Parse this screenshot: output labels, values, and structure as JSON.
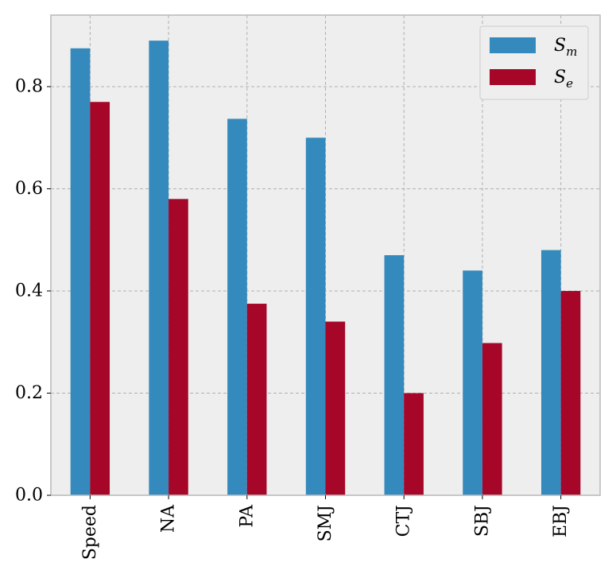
{
  "chart_data": {
    "type": "bar",
    "title": "",
    "xlabel": "",
    "ylabel": "",
    "categories": [
      "Speed",
      "NA",
      "PA",
      "SMJ",
      "CTJ",
      "SBJ",
      "EBJ"
    ],
    "series": [
      {
        "name": "S_m",
        "label_main": "S",
        "label_sub": "m",
        "color": "#348abd",
        "values": [
          0.875,
          0.89,
          0.737,
          0.7,
          0.47,
          0.44,
          0.48
        ]
      },
      {
        "name": "S_e",
        "label_main": "S",
        "label_sub": "e",
        "color": "#a60628",
        "values": [
          0.77,
          0.58,
          0.375,
          0.34,
          0.2,
          0.298,
          0.4
        ]
      }
    ],
    "ylim": [
      0,
      0.94
    ],
    "yticks": [
      0.0,
      0.2,
      0.4,
      0.6,
      0.8
    ],
    "ytick_labels": [
      "0.0",
      "0.2",
      "0.4",
      "0.6",
      "0.8"
    ],
    "grid": true,
    "legend_position": "top-right",
    "background_color": "#eeeeee",
    "grid_color": "#b0b0b0"
  }
}
